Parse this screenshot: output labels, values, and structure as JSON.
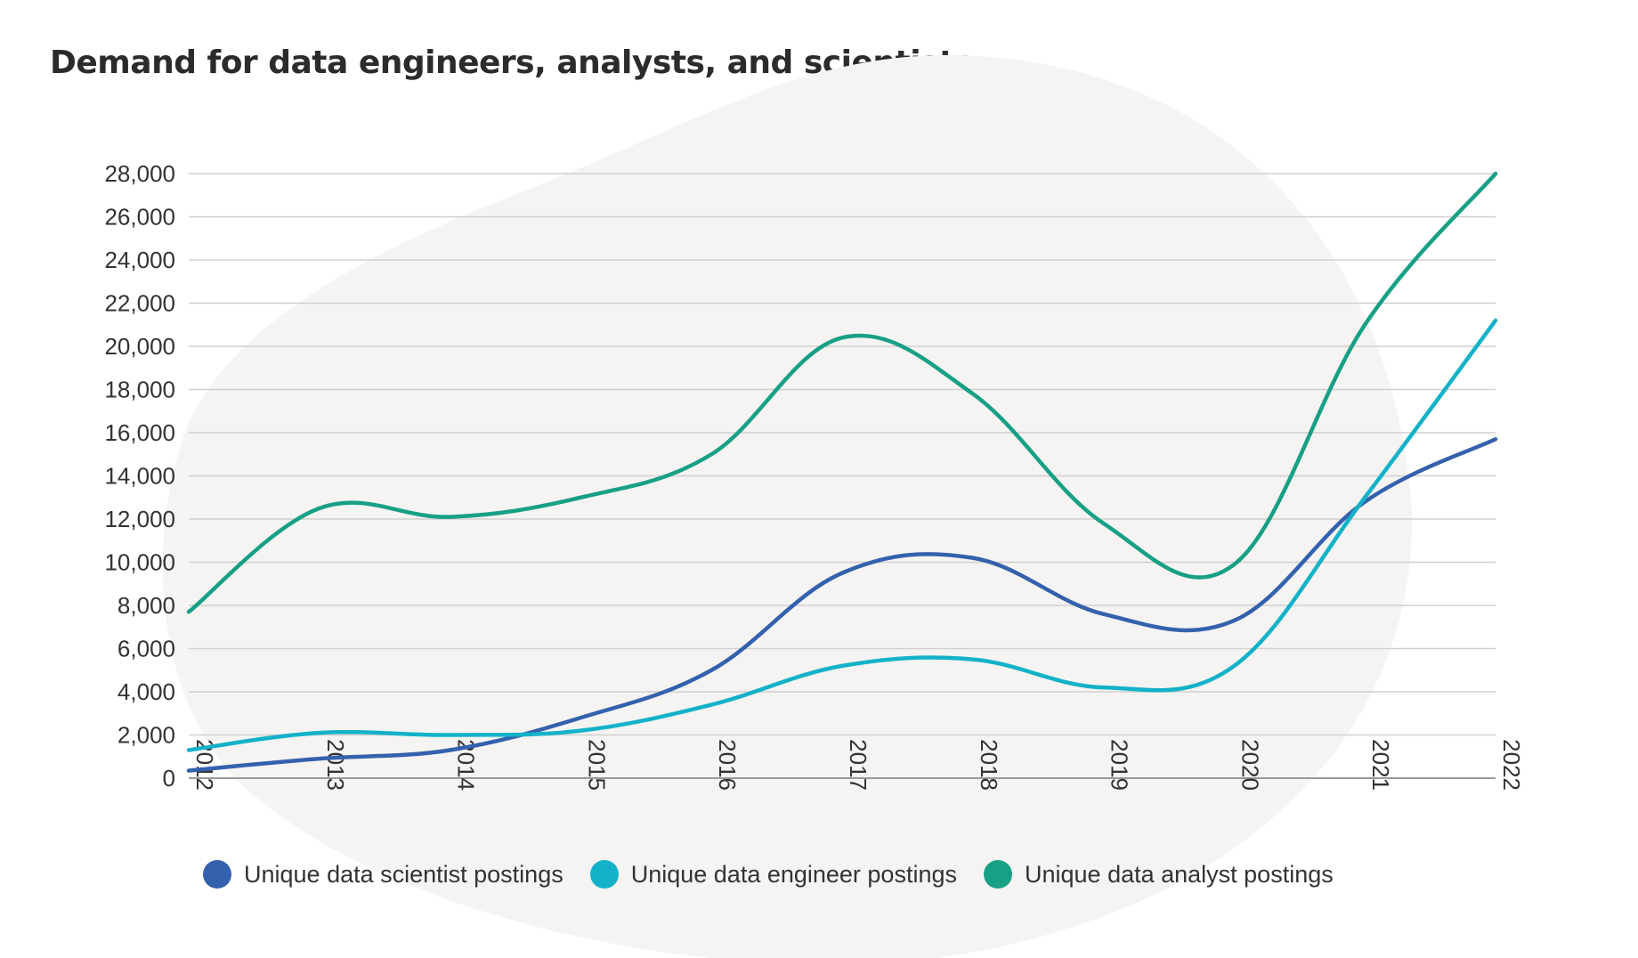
{
  "chart_data": {
    "type": "line",
    "title": "Demand for data engineers, analysts, and scientists",
    "xlabel": "",
    "ylabel": "",
    "categories": [
      "2012",
      "2013",
      "2014",
      "2015",
      "2016",
      "2017",
      "2018",
      "2019",
      "2020",
      "2021",
      "2022"
    ],
    "y_ticks": [
      "0",
      "2,000",
      "4,000",
      "6,000",
      "8,000",
      "10,000",
      "12,000",
      "14,000",
      "16,000",
      "18,000",
      "20,000",
      "22,000",
      "24,000",
      "26,000",
      "28,000"
    ],
    "ylim": [
      0,
      28000
    ],
    "grid": true,
    "legend_position": "bottom",
    "series": [
      {
        "name": "Unique data scientist postings",
        "color": "#3461ad",
        "values": [
          350,
          900,
          1300,
          2800,
          5000,
          9500,
          10200,
          7600,
          7300,
          12800,
          15700
        ]
      },
      {
        "name": "Unique data engineer postings",
        "color": "#13b2c8",
        "values": [
          1300,
          2100,
          2000,
          2200,
          3400,
          5200,
          5500,
          4200,
          5200,
          13000,
          21200
        ]
      },
      {
        "name": "Unique data analyst postings",
        "color": "#18a085",
        "values": [
          7700,
          12500,
          12100,
          13000,
          15000,
          20400,
          17800,
          11800,
          9900,
          21000,
          28000
        ]
      }
    ]
  }
}
